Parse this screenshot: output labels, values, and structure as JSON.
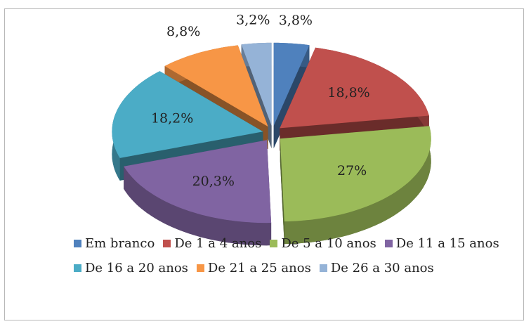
{
  "chart_data": {
    "type": "pie",
    "categories": [
      "Em branco",
      "De 1 a 4 anos",
      "De 5 a 10 anos",
      "De 11 a 15 anos",
      "De 16 a 20 anos",
      "De 21 a 25 anos",
      "De 26 a 30 anos"
    ],
    "values": [
      3.8,
      18.8,
      27,
      20.3,
      18.2,
      8.8,
      3.2
    ],
    "value_labels": [
      "3,8%",
      "18,8%",
      "27%",
      "20,3%",
      "18,2%",
      "8,8%",
      "3,2%"
    ],
    "colors": [
      "#4f81bd",
      "#c0504d",
      "#9bbb59",
      "#8064a2",
      "#4bacc6",
      "#f79646",
      "#95b3d7"
    ],
    "legend": "bottom"
  }
}
